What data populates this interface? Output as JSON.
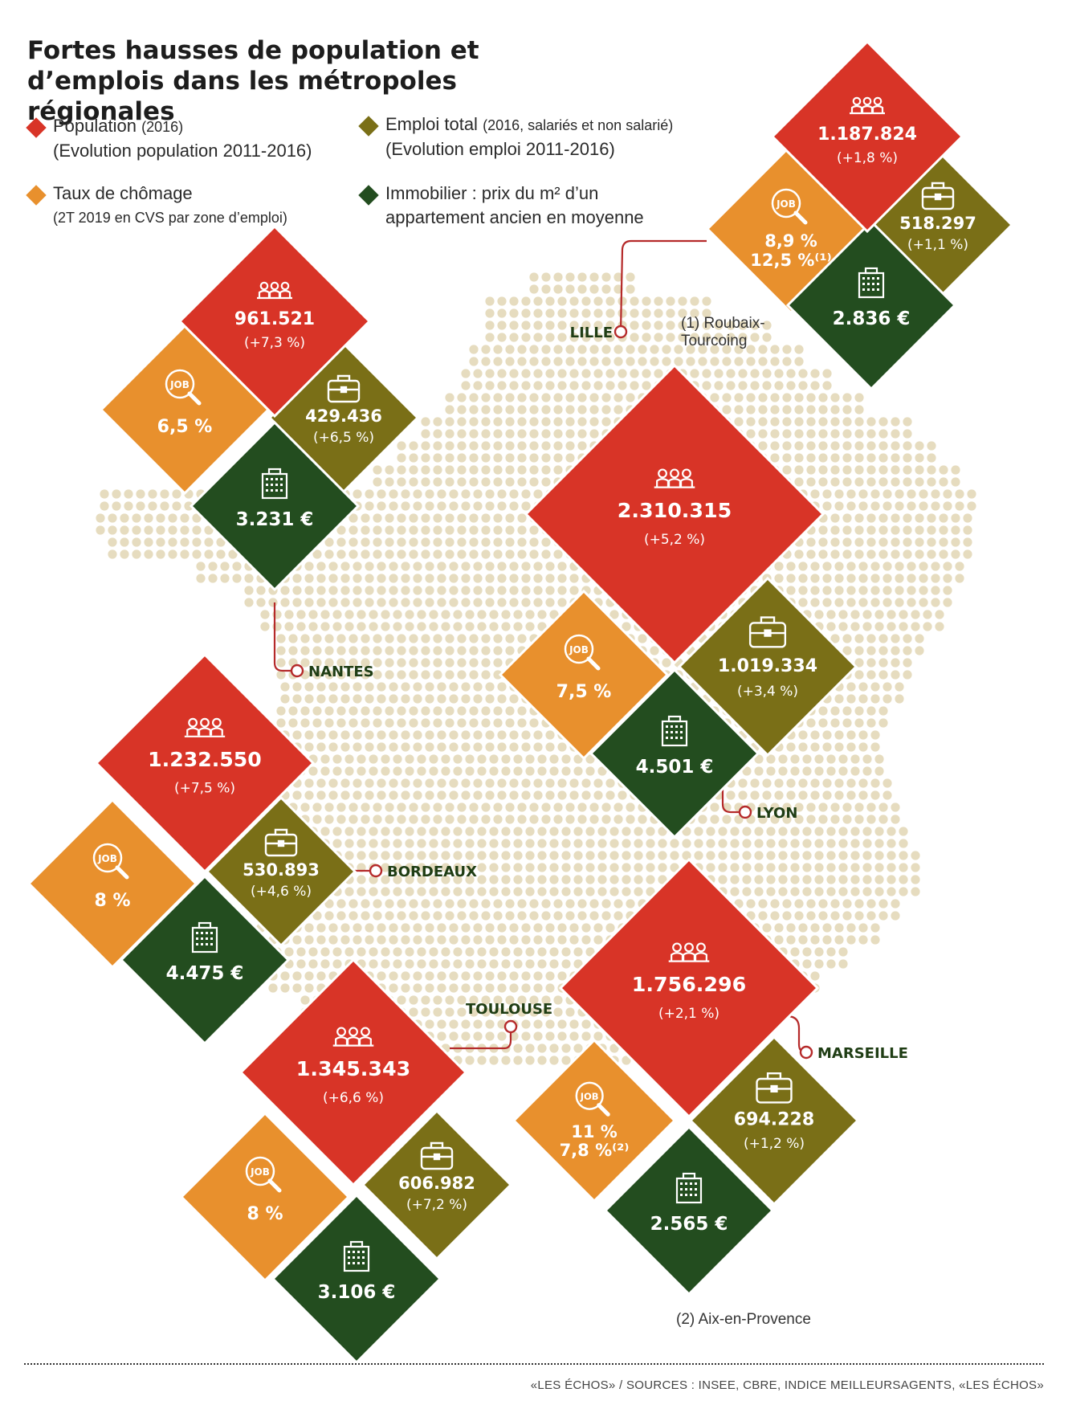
{
  "title": "Fortes hausses de population et d’emplois dans les métropoles régionales",
  "legend": {
    "population": {
      "label": "Population",
      "detail": "(2016)",
      "sub": "(Evolution population 2011-2016)"
    },
    "emploi": {
      "label": "Emploi total",
      "detail": "(2016, salariés et non salarié)",
      "sub": "(Evolution emploi 2011-2016)"
    },
    "chomage": {
      "label": "Taux de chômage",
      "sub": "(2T 2019 en CVS par zone d’emploi)"
    },
    "immobilier": {
      "label": "Immobilier : prix du m² d’un",
      "sub": "appartement ancien en moyenne"
    }
  },
  "colors": {
    "population": "#d83427",
    "chomage": "#e8902d",
    "emploi": "#7a6f17",
    "immobilier": "#234d1f",
    "map_dots": "#e6dcbf",
    "leader": "#b52a2a",
    "city_label": "#1f3d14"
  },
  "icons": {
    "population": "people-icon",
    "chomage": "job-search-icon",
    "emploi": "briefcase-icon",
    "immobilier": "building-icon"
  },
  "notes": {
    "roubaix": [
      "(1) Roubaix-",
      "Tourcoing"
    ],
    "aix": "(2) Aix-en-Provence"
  },
  "source": "«LES ÉCHOS» / SOURCES : INSEE, CBRE, INDICE MEILLEURSAGENTS, «LES ÉCHOS»",
  "chart_data": {
    "type": "table",
    "title": "Fortes hausses de population et d’emplois dans les métropoles régionales",
    "columns": [
      "Population (2016)",
      "Evolution population 2011-2016",
      "Taux de chômage",
      "Emploi total (2016)",
      "Evolution emploi 2011-2016",
      "Prix du m²"
    ],
    "cities": [
      {
        "name": "LILLE",
        "population": "1.187.824",
        "population_change": "(+1,8 %)",
        "chomage": [
          "8,9 %",
          "12,5 %⁽¹⁾"
        ],
        "emploi": "518.297",
        "emploi_change": "(+1,1 %)",
        "immobilier": "2.836 €"
      },
      {
        "name": "NANTES",
        "population": "961.521",
        "population_change": "(+7,3 %)",
        "chomage": [
          "6,5 %"
        ],
        "emploi": "429.436",
        "emploi_change": "(+6,5 %)",
        "immobilier": "3.231 €"
      },
      {
        "name": "LYON",
        "population": "2.310.315",
        "population_change": "(+5,2 %)",
        "chomage": [
          "7,5 %"
        ],
        "emploi": "1.019.334",
        "emploi_change": "(+3,4 %)",
        "immobilier": "4.501 €"
      },
      {
        "name": "BORDEAUX",
        "population": "1.232.550",
        "population_change": "(+7,5 %)",
        "chomage": [
          "8 %"
        ],
        "emploi": "530.893",
        "emploi_change": "(+4,6 %)",
        "immobilier": "4.475 €"
      },
      {
        "name": "TOULOUSE",
        "population": "1.345.343",
        "population_change": "(+6,6 %)",
        "chomage": [
          "8 %"
        ],
        "emploi": "606.982",
        "emploi_change": "(+7,2 %)",
        "immobilier": "3.106 €"
      },
      {
        "name": "MARSEILLE",
        "population": "1.756.296",
        "population_change": "(+2,1 %)",
        "chomage": [
          "11 %",
          "7,8 %⁽²⁾"
        ],
        "emploi": "694.228",
        "emploi_change": "(+1,2 %)",
        "immobilier": "2.565 €"
      }
    ]
  }
}
